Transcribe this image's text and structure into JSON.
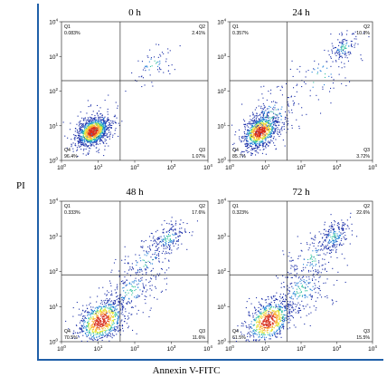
{
  "figure": {
    "y_axis_title": "PI",
    "x_axis_title": "Annexin V-FITC"
  },
  "chart_data": [
    {
      "type": "scatter",
      "title": "0 h",
      "xlabel": "Annexin V-FITC",
      "ylabel": "PI",
      "x_scale": "log",
      "y_scale": "log",
      "xlim": [
        1,
        10000
      ],
      "ylim": [
        1,
        10000
      ],
      "x_ticks": [
        "10^0",
        "10^1",
        "10^2",
        "10^3",
        "10^4"
      ],
      "y_ticks": [
        "10^0",
        "10^1",
        "10^2",
        "10^3",
        "10^4"
      ],
      "gate": {
        "x": 40,
        "y": 200
      },
      "quadrants": [
        {
          "name": "Q1",
          "percent": "0.083%"
        },
        {
          "name": "Q2",
          "percent": "2.41%"
        },
        {
          "name": "Q3",
          "percent": "1.07%"
        },
        {
          "name": "Q4",
          "percent": "96.4%"
        }
      ],
      "clusters": [
        {
          "center_x": 7,
          "center_y": 7,
          "spread_decades": 0.22,
          "share": 0.88
        },
        {
          "center_x": 8,
          "center_y": 9,
          "spread_decades": 0.4,
          "share": 0.07
        },
        {
          "center_x": 300,
          "center_y": 600,
          "spread_decades": 0.28,
          "share": 0.05
        }
      ]
    },
    {
      "type": "scatter",
      "title": "24 h",
      "xlabel": "Annexin V-FITC",
      "ylabel": "PI",
      "x_scale": "log",
      "y_scale": "log",
      "xlim": [
        1,
        10000
      ],
      "ylim": [
        1,
        10000
      ],
      "x_ticks": [
        "10^0",
        "10^1",
        "10^2",
        "10^3",
        "10^4"
      ],
      "y_ticks": [
        "10^0",
        "10^1",
        "10^2",
        "10^3",
        "10^4"
      ],
      "gate": {
        "x": 40,
        "y": 200
      },
      "quadrants": [
        {
          "name": "Q1",
          "percent": "0.357%"
        },
        {
          "name": "Q2",
          "percent": "10.3%"
        },
        {
          "name": "Q3",
          "percent": "3.72%"
        },
        {
          "name": "Q4",
          "percent": "85.7%"
        }
      ],
      "clusters": [
        {
          "center_x": 7,
          "center_y": 7,
          "spread_decades": 0.25,
          "share": 0.72
        },
        {
          "center_x": 15,
          "center_y": 20,
          "spread_decades": 0.45,
          "share": 0.13
        },
        {
          "center_x": 1500,
          "center_y": 1800,
          "spread_decades": 0.22,
          "share": 0.1
        },
        {
          "center_x": 300,
          "center_y": 250,
          "spread_decades": 0.45,
          "share": 0.05
        }
      ]
    },
    {
      "type": "scatter",
      "title": "48 h",
      "xlabel": "Annexin V-FITC",
      "ylabel": "PI",
      "x_scale": "log",
      "y_scale": "log",
      "xlim": [
        1,
        10000
      ],
      "ylim": [
        1,
        10000
      ],
      "x_ticks": [
        "10^0",
        "10^1",
        "10^2",
        "10^3",
        "10^4"
      ],
      "y_ticks": [
        "10^0",
        "10^1",
        "10^2",
        "10^3",
        "10^4"
      ],
      "gate": {
        "x": 40,
        "y": 80
      },
      "quadrants": [
        {
          "name": "Q1",
          "percent": "0.333%"
        },
        {
          "name": "Q2",
          "percent": "17.6%"
        },
        {
          "name": "Q3",
          "percent": "11.6%"
        },
        {
          "name": "Q4",
          "percent": "70.5%"
        }
      ],
      "clusters": [
        {
          "center_x": 12,
          "center_y": 4,
          "spread_decades": 0.32,
          "share": 0.62
        },
        {
          "center_x": 80,
          "center_y": 30,
          "spread_decades": 0.4,
          "share": 0.16
        },
        {
          "center_x": 800,
          "center_y": 900,
          "spread_decades": 0.25,
          "share": 0.14
        },
        {
          "center_x": 200,
          "center_y": 200,
          "spread_decades": 0.4,
          "share": 0.08
        }
      ]
    },
    {
      "type": "scatter",
      "title": "72 h",
      "xlabel": "Annexin V-FITC",
      "ylabel": "PI",
      "x_scale": "log",
      "y_scale": "log",
      "xlim": [
        1,
        10000
      ],
      "ylim": [
        1,
        10000
      ],
      "x_ticks": [
        "10^0",
        "10^1",
        "10^2",
        "10^3",
        "10^4"
      ],
      "y_ticks": [
        "10^0",
        "10^1",
        "10^2",
        "10^3",
        "10^4"
      ],
      "gate": {
        "x": 40,
        "y": 80
      },
      "quadrants": [
        {
          "name": "Q1",
          "percent": "0.323%"
        },
        {
          "name": "Q2",
          "percent": "22.6%"
        },
        {
          "name": "Q3",
          "percent": "15.5%"
        },
        {
          "name": "Q4",
          "percent": "61.5%"
        }
      ],
      "clusters": [
        {
          "center_x": 12,
          "center_y": 4,
          "spread_decades": 0.32,
          "share": 0.56
        },
        {
          "center_x": 100,
          "center_y": 30,
          "spread_decades": 0.42,
          "share": 0.18
        },
        {
          "center_x": 800,
          "center_y": 1000,
          "spread_decades": 0.25,
          "share": 0.17
        },
        {
          "center_x": 200,
          "center_y": 250,
          "spread_decades": 0.4,
          "share": 0.09
        }
      ]
    }
  ]
}
